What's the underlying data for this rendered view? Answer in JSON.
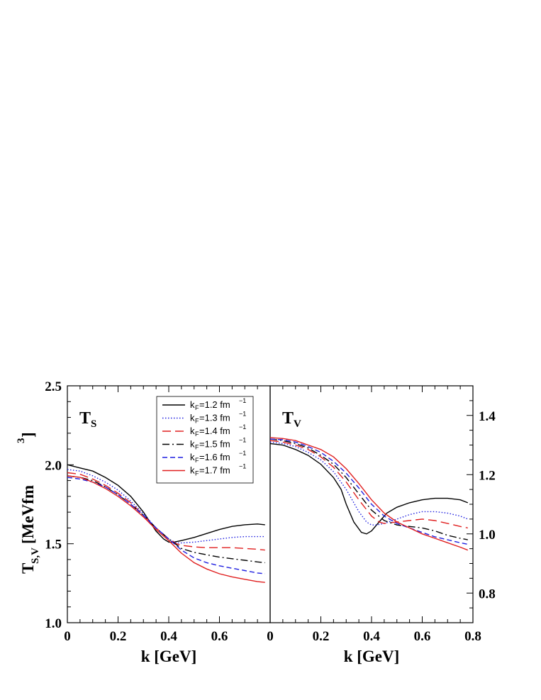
{
  "chart_data": [
    {
      "type": "line",
      "panel": "left",
      "title": "T",
      "title_sub": "S",
      "xlabel": "k [GeV]",
      "ylabel": "T",
      "ylabel_sub": "S,V",
      "ylabel_unit": "[MeVfm",
      "ylabel_sup": "3",
      "ylabel_close": "]",
      "xlim": [
        0,
        0.8
      ],
      "ylim": [
        1.0,
        2.5
      ],
      "xticks": [
        0,
        0.2,
        0.4,
        0.6
      ],
      "xtick_labels": [
        "0",
        "0.2",
        "0.4",
        "0.6"
      ],
      "yticks": [
        1.0,
        1.5,
        2.0,
        2.5
      ],
      "ytick_labels": [
        "1.0",
        "1.5",
        "2.0",
        "2.5"
      ],
      "grid": false,
      "legend_position": "top-right",
      "series": [
        {
          "name": "kF=1.2 fm-1",
          "legend_main": "k",
          "legend_sub": "F",
          "legend_rest": "=1.2 fm",
          "legend_sup": "−1",
          "color": "#000000",
          "dash": "",
          "x": [
            0,
            0.05,
            0.1,
            0.15,
            0.2,
            0.25,
            0.3,
            0.35,
            0.38,
            0.4,
            0.42,
            0.45,
            0.5,
            0.55,
            0.6,
            0.65,
            0.7,
            0.75,
            0.78
          ],
          "y": [
            2.0,
            1.98,
            1.96,
            1.92,
            1.87,
            1.8,
            1.7,
            1.58,
            1.53,
            1.51,
            1.51,
            1.52,
            1.54,
            1.565,
            1.59,
            1.61,
            1.62,
            1.625,
            1.62
          ]
        },
        {
          "name": "kF=1.3 fm-1",
          "legend_main": "k",
          "legend_sub": "F",
          "legend_rest": "=1.3 fm",
          "legend_sup": "−1",
          "color": "#1f1fe0",
          "dash": "1.5,2.5",
          "x": [
            0,
            0.05,
            0.1,
            0.15,
            0.2,
            0.25,
            0.3,
            0.35,
            0.4,
            0.43,
            0.45,
            0.5,
            0.55,
            0.6,
            0.65,
            0.7,
            0.75,
            0.78
          ],
          "y": [
            1.97,
            1.96,
            1.93,
            1.89,
            1.84,
            1.77,
            1.69,
            1.6,
            1.53,
            1.505,
            1.505,
            1.51,
            1.52,
            1.53,
            1.54,
            1.545,
            1.545,
            1.545
          ]
        },
        {
          "name": "kF=1.4 fm-1",
          "legend_main": "k",
          "legend_sub": "F",
          "legend_rest": "=1.4 fm",
          "legend_sup": "−1",
          "color": "#e01f1f",
          "dash": "12,6",
          "x": [
            0,
            0.05,
            0.1,
            0.15,
            0.2,
            0.25,
            0.3,
            0.35,
            0.4,
            0.43,
            0.45,
            0.5,
            0.55,
            0.6,
            0.65,
            0.7,
            0.75,
            0.78
          ],
          "y": [
            1.95,
            1.94,
            1.91,
            1.87,
            1.82,
            1.76,
            1.68,
            1.6,
            1.53,
            1.5,
            1.49,
            1.48,
            1.475,
            1.475,
            1.475,
            1.47,
            1.465,
            1.46
          ]
        },
        {
          "name": "kF=1.5 fm-1",
          "legend_main": "k",
          "legend_sub": "F",
          "legend_rest": "=1.5 fm",
          "legend_sup": "−1",
          "color": "#000000",
          "dash": "10,4,2,4",
          "x": [
            0,
            0.05,
            0.1,
            0.15,
            0.2,
            0.25,
            0.3,
            0.35,
            0.4,
            0.45,
            0.5,
            0.55,
            0.6,
            0.65,
            0.7,
            0.75,
            0.78
          ],
          "y": [
            1.93,
            1.92,
            1.9,
            1.86,
            1.81,
            1.75,
            1.68,
            1.6,
            1.53,
            1.47,
            1.445,
            1.43,
            1.415,
            1.405,
            1.395,
            1.385,
            1.38
          ]
        },
        {
          "name": "kF=1.6 fm-1",
          "legend_main": "k",
          "legend_sub": "F",
          "legend_rest": "=1.6 fm",
          "legend_sup": "−1",
          "color": "#1f1fe0",
          "dash": "7,4",
          "x": [
            0,
            0.05,
            0.1,
            0.15,
            0.2,
            0.25,
            0.3,
            0.35,
            0.4,
            0.45,
            0.5,
            0.55,
            0.6,
            0.65,
            0.7,
            0.75,
            0.78
          ],
          "y": [
            1.92,
            1.91,
            1.89,
            1.86,
            1.81,
            1.75,
            1.68,
            1.6,
            1.53,
            1.46,
            1.41,
            1.38,
            1.36,
            1.345,
            1.33,
            1.315,
            1.31
          ]
        },
        {
          "name": "kF=1.7 fm-1",
          "legend_main": "k",
          "legend_sub": "F",
          "legend_rest": "=1.7 fm",
          "legend_sup": "−1",
          "color": "#e01f1f",
          "dash": "",
          "x": [
            0,
            0.05,
            0.1,
            0.15,
            0.2,
            0.25,
            0.3,
            0.35,
            0.4,
            0.45,
            0.5,
            0.55,
            0.6,
            0.65,
            0.7,
            0.75,
            0.78
          ],
          "y": [
            1.93,
            1.92,
            1.89,
            1.85,
            1.8,
            1.74,
            1.67,
            1.59,
            1.52,
            1.44,
            1.38,
            1.34,
            1.31,
            1.29,
            1.275,
            1.26,
            1.255
          ]
        }
      ]
    },
    {
      "type": "line",
      "panel": "right",
      "title": "T",
      "title_sub": "V",
      "xlabel": "k [GeV]",
      "xlim": [
        0,
        0.8
      ],
      "ylim": [
        0.7,
        1.5
      ],
      "xticks": [
        0,
        0.2,
        0.4,
        0.6,
        0.8
      ],
      "xtick_labels": [
        "0",
        "0.2",
        "0.4",
        "0.6",
        "0.8"
      ],
      "yticks": [
        0.8,
        1.0,
        1.2,
        1.4
      ],
      "ytick_labels": [
        "0.8",
        "1.0",
        "1.2",
        "1.4"
      ],
      "grid": false,
      "series": [
        {
          "name": "kF=1.2 fm-1",
          "color": "#000000",
          "dash": "",
          "x": [
            0,
            0.05,
            0.1,
            0.15,
            0.2,
            0.25,
            0.28,
            0.3,
            0.33,
            0.36,
            0.38,
            0.4,
            0.43,
            0.46,
            0.5,
            0.55,
            0.6,
            0.65,
            0.7,
            0.75,
            0.78
          ],
          "y": [
            1.305,
            1.3,
            1.285,
            1.265,
            1.235,
            1.19,
            1.15,
            1.1,
            1.04,
            1.005,
            1.0,
            1.01,
            1.04,
            1.07,
            1.09,
            1.105,
            1.115,
            1.12,
            1.12,
            1.115,
            1.105
          ]
        },
        {
          "name": "kF=1.3 fm-1",
          "color": "#1f1fe0",
          "dash": "1.5,2.5",
          "x": [
            0,
            0.05,
            0.1,
            0.15,
            0.2,
            0.25,
            0.3,
            0.35,
            0.38,
            0.4,
            0.42,
            0.45,
            0.5,
            0.55,
            0.6,
            0.65,
            0.7,
            0.75,
            0.78
          ],
          "y": [
            1.31,
            1.305,
            1.295,
            1.275,
            1.25,
            1.21,
            1.15,
            1.075,
            1.04,
            1.03,
            1.03,
            1.035,
            1.05,
            1.065,
            1.075,
            1.075,
            1.07,
            1.06,
            1.05
          ]
        },
        {
          "name": "kF=1.4 fm-1",
          "color": "#e01f1f",
          "dash": "12,6",
          "x": [
            0,
            0.05,
            0.1,
            0.15,
            0.2,
            0.25,
            0.3,
            0.35,
            0.4,
            0.43,
            0.45,
            0.5,
            0.55,
            0.6,
            0.65,
            0.7,
            0.75,
            0.78
          ],
          "y": [
            1.315,
            1.31,
            1.3,
            1.285,
            1.26,
            1.225,
            1.175,
            1.115,
            1.06,
            1.04,
            1.035,
            1.04,
            1.045,
            1.05,
            1.045,
            1.035,
            1.025,
            1.02
          ]
        },
        {
          "name": "kF=1.5 fm-1",
          "color": "#000000",
          "dash": "10,4,2,4",
          "x": [
            0,
            0.05,
            0.1,
            0.15,
            0.2,
            0.25,
            0.3,
            0.35,
            0.4,
            0.45,
            0.5,
            0.55,
            0.6,
            0.65,
            0.7,
            0.75,
            0.78
          ],
          "y": [
            1.32,
            1.315,
            1.305,
            1.29,
            1.265,
            1.235,
            1.19,
            1.135,
            1.08,
            1.045,
            1.03,
            1.025,
            1.02,
            1.01,
            0.995,
            0.985,
            0.98
          ]
        },
        {
          "name": "kF=1.6 fm-1",
          "color": "#1f1fe0",
          "dash": "7,4",
          "x": [
            0,
            0.05,
            0.1,
            0.15,
            0.2,
            0.25,
            0.3,
            0.35,
            0.4,
            0.45,
            0.5,
            0.55,
            0.6,
            0.65,
            0.7,
            0.75,
            0.78
          ],
          "y": [
            1.32,
            1.318,
            1.31,
            1.295,
            1.275,
            1.245,
            1.205,
            1.155,
            1.1,
            1.06,
            1.035,
            1.02,
            1.005,
            0.99,
            0.98,
            0.97,
            0.965
          ]
        },
        {
          "name": "kF=1.7 fm-1",
          "color": "#e01f1f",
          "dash": "",
          "x": [
            0,
            0.05,
            0.1,
            0.15,
            0.2,
            0.25,
            0.3,
            0.35,
            0.4,
            0.45,
            0.5,
            0.55,
            0.6,
            0.65,
            0.7,
            0.75,
            0.78
          ],
          "y": [
            1.325,
            1.322,
            1.315,
            1.3,
            1.285,
            1.26,
            1.22,
            1.17,
            1.115,
            1.07,
            1.04,
            1.02,
            1.0,
            0.985,
            0.97,
            0.955,
            0.945
          ]
        }
      ]
    }
  ]
}
